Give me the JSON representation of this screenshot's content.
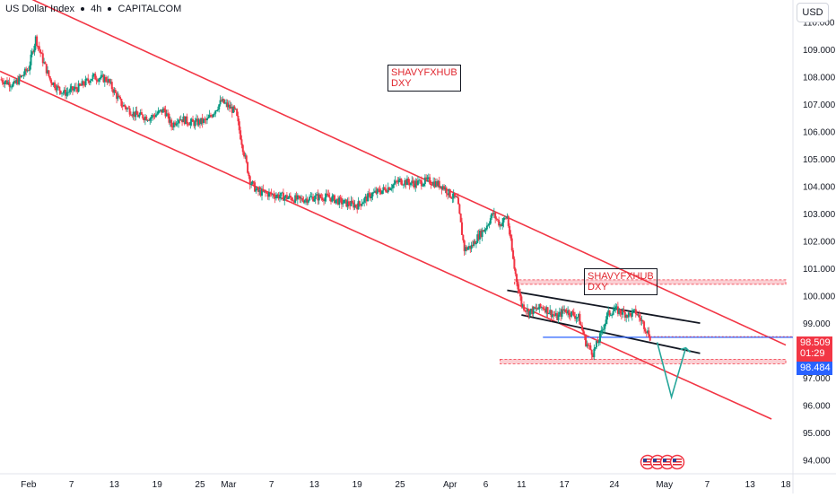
{
  "header": {
    "symbol": "US Dollar Index",
    "interval": "4h",
    "source": "CAPITALCOM"
  },
  "currency_button": "USD",
  "annotations": {
    "logo_1": {
      "line1": "SHAVYFXHUB",
      "line2": "DXY"
    },
    "logo_2": {
      "line1": "SHAVYFXHUB",
      "line2": "DXY"
    }
  },
  "price_tags": {
    "last_price": "98.509",
    "countdown": "01:29",
    "line_price": "98.484"
  },
  "colors": {
    "bull": "#089981",
    "bear": "#f23645",
    "channel": "#f23645",
    "zone": "#f7a8ae",
    "horizontal_line": "#2962ff",
    "projection": "#26a69a",
    "last_price_bg": "#f23645",
    "line_price_bg": "#2962ff"
  },
  "chart_data": {
    "type": "candlestick",
    "title": "US Dollar Index · 4h · CAPITALCOM",
    "y_axis": {
      "label": "USD",
      "ticks": [
        110.0,
        109.0,
        108.0,
        107.0,
        106.0,
        105.0,
        104.0,
        103.0,
        102.0,
        101.0,
        100.0,
        99.0,
        98.0,
        97.0,
        96.0,
        95.0,
        94.0
      ],
      "range": [
        93.5,
        110.8
      ]
    },
    "x_axis": {
      "ticks": [
        {
          "label": "Feb",
          "date": "2025-02-01"
        },
        {
          "label": "7",
          "date": "2025-02-07"
        },
        {
          "label": "13",
          "date": "2025-02-13"
        },
        {
          "label": "19",
          "date": "2025-02-19"
        },
        {
          "label": "25",
          "date": "2025-02-25"
        },
        {
          "label": "Mar",
          "date": "2025-03-01"
        },
        {
          "label": "7",
          "date": "2025-03-07"
        },
        {
          "label": "13",
          "date": "2025-03-13"
        },
        {
          "label": "19",
          "date": "2025-03-19"
        },
        {
          "label": "25",
          "date": "2025-03-25"
        },
        {
          "label": "Apr",
          "date": "2025-04-01"
        },
        {
          "label": "6",
          "date": "2025-04-06"
        },
        {
          "label": "11",
          "date": "2025-04-11"
        },
        {
          "label": "17",
          "date": "2025-04-17"
        },
        {
          "label": "24",
          "date": "2025-04-24"
        },
        {
          "label": "May",
          "date": "2025-05-01"
        },
        {
          "label": "7",
          "date": "2025-05-07"
        },
        {
          "label": "13",
          "date": "2025-05-13"
        },
        {
          "label": "18",
          "date": "2025-05-18"
        }
      ],
      "range": [
        "2025-01-28",
        "2025-05-19"
      ]
    },
    "price_path": [
      [
        "2025-01-28",
        107.9
      ],
      [
        "2025-01-30",
        107.7
      ],
      [
        "2025-02-01",
        108.3
      ],
      [
        "2025-02-02",
        109.4
      ],
      [
        "2025-02-03",
        108.6
      ],
      [
        "2025-02-04",
        107.9
      ],
      [
        "2025-02-05",
        107.6
      ],
      [
        "2025-02-06",
        107.4
      ],
      [
        "2025-02-08",
        107.6
      ],
      [
        "2025-02-10",
        108.0
      ],
      [
        "2025-02-12",
        107.9
      ],
      [
        "2025-02-14",
        107.0
      ],
      [
        "2025-02-16",
        106.6
      ],
      [
        "2025-02-18",
        106.5
      ],
      [
        "2025-02-20",
        106.8
      ],
      [
        "2025-02-21",
        106.2
      ],
      [
        "2025-02-22",
        106.5
      ],
      [
        "2025-02-24",
        106.3
      ],
      [
        "2025-02-26",
        106.4
      ],
      [
        "2025-02-28",
        107.1
      ],
      [
        "2025-03-02",
        106.7
      ],
      [
        "2025-03-03",
        105.4
      ],
      [
        "2025-03-04",
        104.2
      ],
      [
        "2025-03-05",
        103.8
      ],
      [
        "2025-03-07",
        103.7
      ],
      [
        "2025-03-09",
        103.6
      ],
      [
        "2025-03-11",
        103.5
      ],
      [
        "2025-03-13",
        103.6
      ],
      [
        "2025-03-15",
        103.6
      ],
      [
        "2025-03-17",
        103.4
      ],
      [
        "2025-03-19",
        103.3
      ],
      [
        "2025-03-21",
        103.7
      ],
      [
        "2025-03-23",
        103.9
      ],
      [
        "2025-03-25",
        104.2
      ],
      [
        "2025-03-27",
        104.1
      ],
      [
        "2025-03-29",
        104.2
      ],
      [
        "2025-03-31",
        104.0
      ],
      [
        "2025-04-01",
        103.7
      ],
      [
        "2025-04-02",
        103.5
      ],
      [
        "2025-04-03",
        101.7
      ],
      [
        "2025-04-04",
        101.8
      ],
      [
        "2025-04-05",
        102.2
      ],
      [
        "2025-04-06",
        102.5
      ],
      [
        "2025-04-07",
        103.0
      ],
      [
        "2025-04-08",
        102.6
      ],
      [
        "2025-04-09",
        102.9
      ],
      [
        "2025-04-10",
        101.0
      ],
      [
        "2025-04-11",
        99.7
      ],
      [
        "2025-04-12",
        99.4
      ],
      [
        "2025-04-14",
        99.6
      ],
      [
        "2025-04-15",
        99.4
      ],
      [
        "2025-04-16",
        99.2
      ],
      [
        "2025-04-17",
        99.5
      ],
      [
        "2025-04-19",
        99.2
      ],
      [
        "2025-04-20",
        98.3
      ],
      [
        "2025-04-21",
        97.9
      ],
      [
        "2025-04-22",
        98.5
      ],
      [
        "2025-04-23",
        99.3
      ],
      [
        "2025-04-24",
        99.5
      ],
      [
        "2025-04-25",
        99.4
      ],
      [
        "2025-04-26",
        99.3
      ],
      [
        "2025-04-27",
        99.4
      ],
      [
        "2025-04-28",
        99.0
      ],
      [
        "2025-04-29",
        98.5
      ]
    ],
    "drawings": {
      "channel_upper": [
        [
          "2025-01-31",
          111.0
        ],
        [
          "2025-05-18",
          98.2
        ]
      ],
      "channel_lower": [
        [
          "2025-01-28",
          108.2
        ],
        [
          "2025-05-16",
          95.5
        ]
      ],
      "black_line_upper": [
        [
          "2025-04-09",
          100.2
        ],
        [
          "2025-05-06",
          99.0
        ]
      ],
      "black_line_lower": [
        [
          "2025-04-11",
          99.3
        ],
        [
          "2025-05-06",
          97.9
        ]
      ],
      "blue_horizontal": {
        "price": 98.484,
        "from": "2025-04-14"
      },
      "resistance_zone": {
        "price": 100.5,
        "from": "2025-04-10",
        "to": "2025-05-18"
      },
      "support_zone": {
        "price": 97.6,
        "from": "2025-04-08",
        "to": "2025-05-18"
      },
      "projection_path": [
        [
          "2025-04-30",
          98.3
        ],
        [
          "2025-05-02",
          96.3
        ],
        [
          "2025-05-04",
          98.1
        ]
      ]
    }
  }
}
